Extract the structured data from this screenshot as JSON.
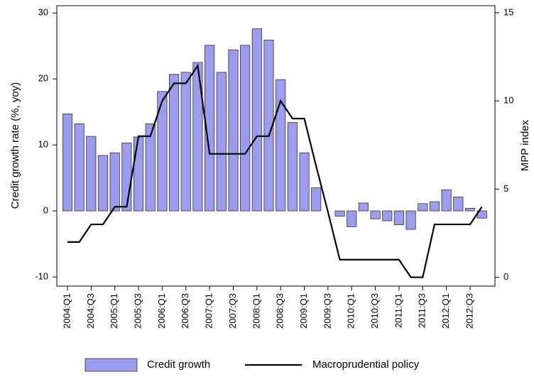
{
  "chart_data": {
    "type": "bar",
    "y_label": "Credit growth rate (%, yoy)",
    "y2_label": "MPP index",
    "categories": [
      "2004:Q1",
      null,
      "2004:Q3",
      null,
      "2005:Q1",
      null,
      "2005:Q3",
      null,
      "2006:Q1",
      null,
      "2006:Q3",
      null,
      "2007:Q1",
      null,
      "2007:Q3",
      null,
      "2008:Q1",
      null,
      "2008:Q3",
      null,
      "2009:Q1",
      null,
      "2009:Q3",
      null,
      "2010:Q1",
      null,
      "2010:Q3",
      null,
      "2011:Q1",
      null,
      "2011:Q3",
      null,
      "2012:Q1",
      null,
      "2012:Q3",
      null
    ],
    "series": [
      {
        "name": "Credit growth",
        "type": "bar",
        "color": "#9b9bf0",
        "values": [
          14.7,
          13.2,
          11.3,
          8.4,
          8.8,
          10.3,
          11.2,
          13.2,
          18.1,
          20.7,
          21.0,
          22.5,
          25.1,
          21.0,
          24.4,
          25.1,
          27.6,
          25.9,
          19.9,
          13.4,
          8.8,
          3.5,
          0,
          -0.8,
          -2.4,
          1.2,
          -1.2,
          -1.5,
          -2.1,
          -2.8,
          1.1,
          1.4,
          3.2,
          2.1,
          0.4,
          -1.1
        ]
      },
      {
        "name": "Macroprudential policy",
        "type": "line",
        "axis": "y2",
        "color": "#000000",
        "values": [
          2,
          2,
          3,
          3,
          4,
          4,
          8,
          8,
          10,
          11,
          11,
          12,
          7,
          7,
          7,
          7,
          8,
          8,
          10,
          9,
          9,
          6.3,
          3.7,
          1,
          1,
          1,
          1,
          1,
          1,
          0,
          0,
          3,
          3,
          3,
          3,
          4
        ]
      }
    ],
    "ylim": [
      -11.4,
      31.1
    ],
    "yticks": [
      -10,
      0,
      10,
      20,
      30
    ],
    "y2lim": [
      -0.5,
      15.4
    ],
    "y2ticks": [
      0,
      5,
      10,
      15
    ],
    "legend": "bottom"
  }
}
